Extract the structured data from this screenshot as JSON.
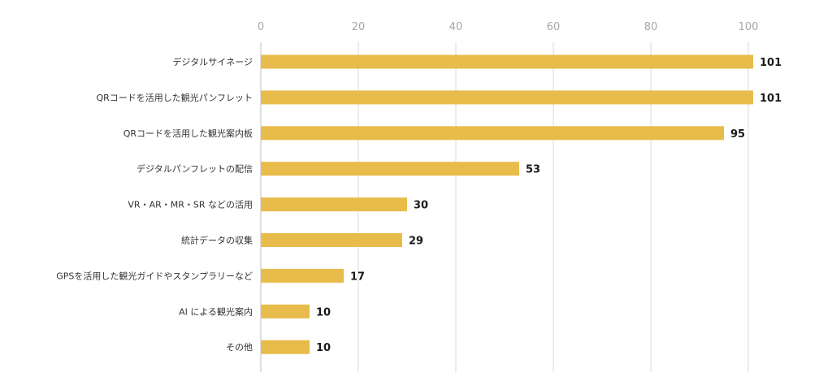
{
  "chart_data": {
    "type": "bar",
    "orientation": "horizontal",
    "categories": [
      "デジタルサイネージ",
      "QRコードを活用した観光パンフレット",
      "QRコードを活用した観光案内板",
      "デジタルパンフレットの配信",
      "VR・AR・MR・SR などの活用",
      "統計データの収集",
      "GPSを活用した観光ガイドやスタンプラリーなど",
      "AI による観光案内",
      "その他"
    ],
    "values": [
      101,
      101,
      95,
      53,
      30,
      29,
      17,
      10,
      10
    ],
    "value_labels": [
      "101",
      "101",
      "95",
      "53",
      "30",
      "29",
      "17",
      "10",
      "10"
    ],
    "xlim": [
      0,
      100
    ],
    "x_ticks": [
      0,
      20,
      40,
      60,
      80,
      100
    ],
    "x_tick_labels": [
      "0",
      "20",
      "40",
      "60",
      "80",
      "100"
    ],
    "x_axis_position": "top",
    "grid": true,
    "bar_color": "#E8BC4B",
    "title": "",
    "xlabel": "",
    "ylabel": ""
  }
}
